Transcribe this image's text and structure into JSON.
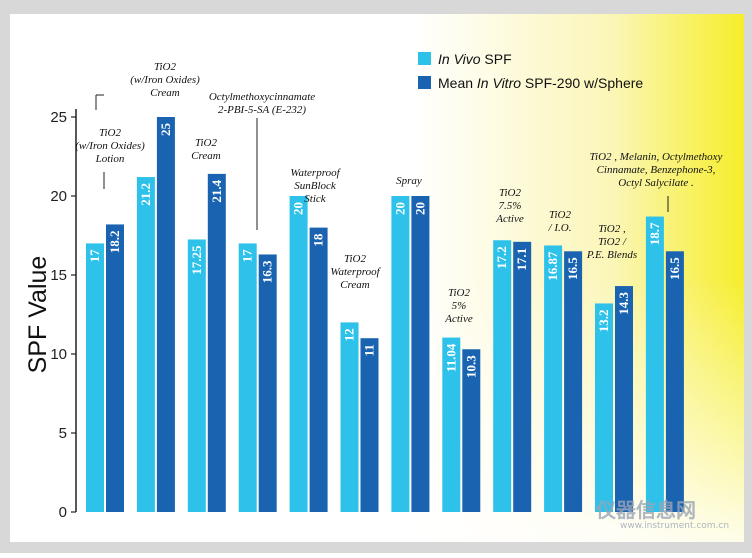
{
  "chart_data": {
    "type": "bar",
    "ylabel": "SPF Value",
    "ylim": [
      0,
      25
    ],
    "yticks": [
      0,
      5,
      10,
      15,
      20,
      25
    ],
    "series": [
      {
        "name": "In Vivo SPF",
        "color": "#2ec2ea",
        "values": [
          17,
          21.2,
          17.25,
          17,
          20,
          12,
          20,
          11.04,
          17.2,
          16.87,
          13.2,
          18.7
        ],
        "labels": [
          "17",
          "21.2",
          "17.25",
          "17",
          "20",
          "12",
          "20",
          "11.04",
          "17.2",
          "16.87",
          "13.2",
          "18.7"
        ]
      },
      {
        "name": "Mean In Vitro SPF-290 w/Sphere",
        "color": "#1a63b0",
        "values": [
          18.2,
          25,
          21.4,
          16.3,
          18,
          11,
          20,
          10.3,
          17.1,
          16.5,
          14.3,
          16.5
        ],
        "labels": [
          "18.2",
          "25",
          "21.4",
          "16.3",
          "18",
          "11",
          "20",
          "10.3",
          "17.1",
          "16.5",
          "14.3",
          "16.5"
        ]
      }
    ],
    "legend": {
      "position": "top-right",
      "items": [
        {
          "prefix": "",
          "italic": "In Vivo",
          "suffix": " SPF"
        },
        {
          "prefix": "Mean ",
          "italic": "In Vitro",
          "suffix": " SPF-290 w/Sphere"
        }
      ]
    },
    "annotations": [
      {
        "lines": [
          "TiO2",
          "(w/Iron Oxides)",
          "Lotion"
        ]
      },
      {
        "lines": [
          "TiO2",
          "(w/Iron Oxides)",
          "Cream"
        ]
      },
      {
        "lines": [
          "TiO2",
          "Cream"
        ]
      },
      {
        "lines": [
          "Octylmethoxycinnamate",
          "2-PBI-5-SA (E-232)"
        ]
      },
      {
        "lines": [
          "Waterproof",
          "SunBlock",
          "Stick"
        ]
      },
      {
        "lines": [
          "TiO2",
          "Waterproof",
          "Cream"
        ]
      },
      {
        "lines": [
          "Spray"
        ]
      },
      {
        "lines": [
          "TiO2",
          "5%",
          "Active"
        ]
      },
      {
        "lines": [
          "TiO2",
          "7.5%",
          "Active"
        ]
      },
      {
        "lines": [
          "TiO2",
          "/ I.O."
        ]
      },
      {
        "lines": [
          "TiO2 ,",
          "TiO2 /",
          "P.E. Blends"
        ]
      },
      {
        "lines": [
          "TiO2 , Melanin, Octylmethoxy",
          "Cinnamate, Benzephone-3,",
          "Octyl Salycilate ."
        ]
      }
    ],
    "grid": false
  },
  "watermark": {
    "text": "仪器信息网",
    "sub": "www.instrument.com.cn"
  }
}
